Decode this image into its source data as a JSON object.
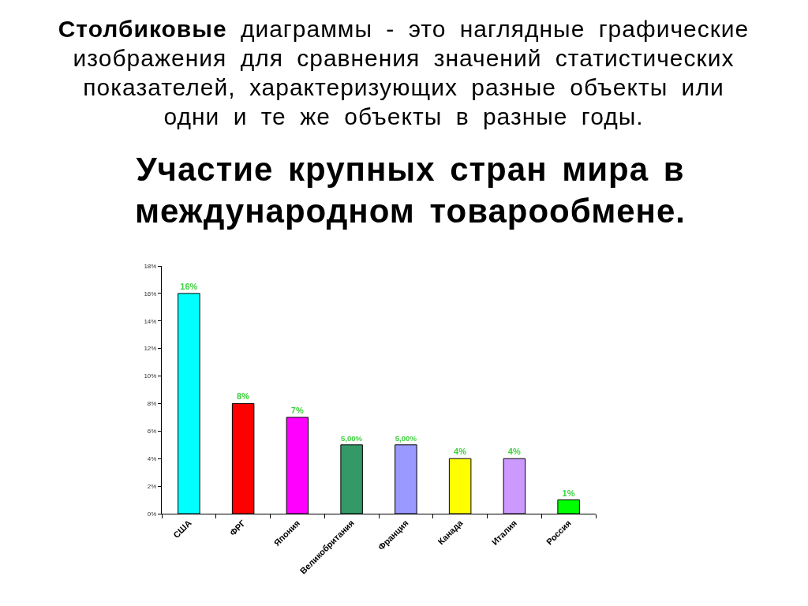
{
  "chart_data": {
    "type": "bar",
    "subtitle": "Столбиковые диаграммы - это наглядные графические изображения для сравнения значений статистических показателей, характеризующих разные объекты или одни и те же объекты в разные годы.",
    "title": "Участие крупных стран мира в международном товарообмене.",
    "categories": [
      "США",
      "ФРГ",
      "Япония",
      "Великобритания",
      "Франция",
      "Канада",
      "Италия",
      "Россия"
    ],
    "values": [
      16,
      8,
      7,
      5,
      5,
      4,
      4,
      1
    ],
    "value_labels": [
      "16%",
      "8%",
      "7%",
      "5,00%",
      "5,00%",
      "4%",
      "4%",
      "1%"
    ],
    "colors": [
      "#00ffff",
      "#ff0000",
      "#ff00ff",
      "#339966",
      "#9999ff",
      "#ffff00",
      "#cc99ff",
      "#00ff00"
    ],
    "ylim": [
      0,
      18
    ],
    "yticks": [
      {
        "value": 0,
        "label": "0%"
      },
      {
        "value": 2,
        "label": "2%"
      },
      {
        "value": 4,
        "label": "4%"
      },
      {
        "value": 6,
        "label": "6%"
      },
      {
        "value": 8,
        "label": "8%"
      },
      {
        "value": 10,
        "label": "10%"
      },
      {
        "value": 12,
        "label": "12%"
      },
      {
        "value": 14,
        "label": "14%"
      },
      {
        "value": 16,
        "label": "16%"
      },
      {
        "value": 18,
        "label": "18%"
      }
    ],
    "grid": false
  }
}
